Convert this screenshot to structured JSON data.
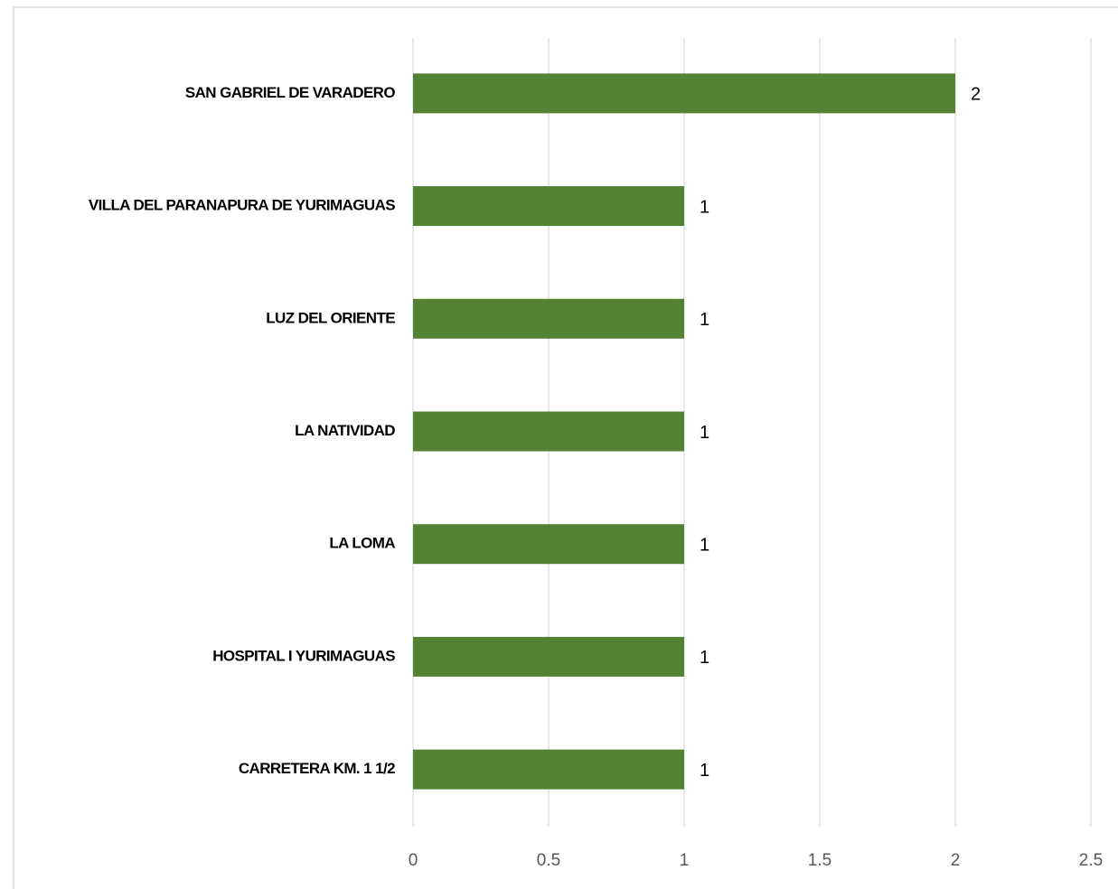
{
  "chart_data": {
    "type": "bar",
    "categories": [
      "SAN GABRIEL DE VARADERO",
      "VILLA DEL PARANAPURA DE YURIMAGUAS",
      "LUZ DEL ORIENTE",
      "LA NATIVIDAD",
      "LA LOMA",
      "HOSPITAL I YURIMAGUAS",
      "CARRETERA KM. 1 1/2"
    ],
    "values": [
      2,
      1,
      1,
      1,
      1,
      1,
      1
    ],
    "color": "#548235",
    "xlim": [
      0,
      2.5
    ],
    "xticks": [
      0,
      0.5,
      1,
      1.5,
      2,
      2.5
    ],
    "grid": true
  }
}
